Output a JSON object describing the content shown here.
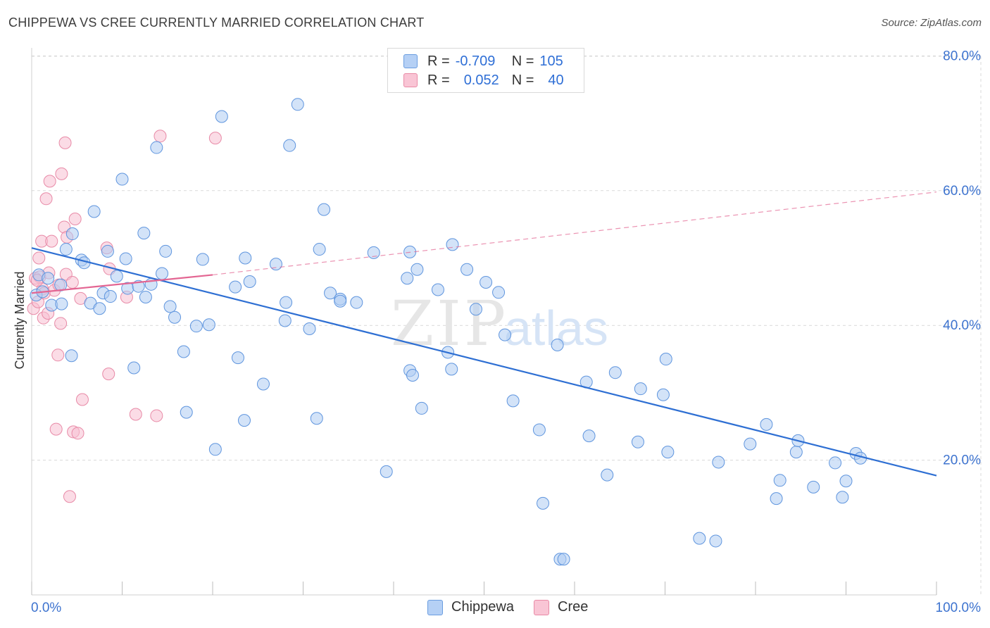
{
  "title": "CHIPPEWA VS CREE CURRENTLY MARRIED CORRELATION CHART",
  "source": "Source: ZipAtlas.com",
  "watermark_left": "ZIP",
  "watermark_right": "atlas",
  "legend": {
    "r_label": "R =",
    "n_label": "N =",
    "rows": [
      {
        "name": "Chippewa",
        "r": "-0.709",
        "n": "105",
        "fill": "#b5d0f5",
        "stroke": "#6a9de0"
      },
      {
        "name": "Cree",
        "r": "0.052",
        "n": "40",
        "fill": "#f9c5d5",
        "stroke": "#e98aa6"
      }
    ]
  },
  "colors": {
    "chippewa_fill": "#aeccf3",
    "chippewa_stroke": "#5f95de",
    "chippewa_line": "#2e6fd3",
    "cree_fill": "#f8c0d1",
    "cree_stroke": "#e88aa7",
    "cree_line": "#e36592",
    "axis_label": "#3d73cf",
    "grid": "#d9d9d9"
  },
  "chart_data": {
    "type": "scatter",
    "title": "CHIPPEWA VS CREE CURRENTLY MARRIED CORRELATION CHART",
    "xlabel": "",
    "ylabel": "Currently Married",
    "xlim": [
      0,
      100
    ],
    "ylim": [
      0,
      82
    ],
    "x_tick_labels": [
      "0.0%",
      "100.0%"
    ],
    "y_ticks": [
      20,
      40,
      60,
      80
    ],
    "y_tick_labels": [
      "20.0%",
      "40.0%",
      "60.0%",
      "80.0%"
    ],
    "grid": true,
    "series": [
      {
        "name": "Chippewa",
        "trend": {
          "x0": 0,
          "y0": 51.5,
          "x1": 100,
          "y1": 17.7
        },
        "points": [
          [
            0.5,
            44.5
          ],
          [
            0.8,
            47.5
          ],
          [
            1.2,
            45
          ],
          [
            1.8,
            47
          ],
          [
            2.2,
            43
          ],
          [
            3.3,
            43.2
          ],
          [
            3.2,
            46
          ],
          [
            3.8,
            51.3
          ],
          [
            4.5,
            53.6
          ],
          [
            4.4,
            35.5
          ],
          [
            5.5,
            49.7
          ],
          [
            5.8,
            49.3
          ],
          [
            6.5,
            43.3
          ],
          [
            6.9,
            56.9
          ],
          [
            7.5,
            42.5
          ],
          [
            7.9,
            44.8
          ],
          [
            8.4,
            51
          ],
          [
            8.7,
            44.3
          ],
          [
            9.4,
            47.3
          ],
          [
            10,
            61.7
          ],
          [
            10.4,
            49.9
          ],
          [
            10.6,
            45.5
          ],
          [
            11.3,
            33.7
          ],
          [
            11.8,
            45.8
          ],
          [
            12.4,
            53.7
          ],
          [
            12.6,
            44.2
          ],
          [
            13.2,
            46.1
          ],
          [
            13.8,
            66.4
          ],
          [
            14.4,
            47.7
          ],
          [
            14.8,
            51
          ],
          [
            15.3,
            42.8
          ],
          [
            15.8,
            41.2
          ],
          [
            16.8,
            36.1
          ],
          [
            17.1,
            27.1
          ],
          [
            18.2,
            39.9
          ],
          [
            18.9,
            49.8
          ],
          [
            19.6,
            40.1
          ],
          [
            20.3,
            21.6
          ],
          [
            21,
            71
          ],
          [
            22.5,
            45.7
          ],
          [
            22.8,
            35.2
          ],
          [
            23.5,
            25.9
          ],
          [
            23.6,
            50
          ],
          [
            24.1,
            46.5
          ],
          [
            25.6,
            31.3
          ],
          [
            27,
            49.1
          ],
          [
            28.1,
            43.4
          ],
          [
            28,
            40.7
          ],
          [
            28.5,
            66.7
          ],
          [
            29.4,
            72.8
          ],
          [
            30.7,
            39.5
          ],
          [
            31.5,
            26.2
          ],
          [
            31.8,
            51.3
          ],
          [
            32.3,
            57.2
          ],
          [
            33,
            44.8
          ],
          [
            34.1,
            43.9
          ],
          [
            34.1,
            43.6
          ],
          [
            35.9,
            43.4
          ],
          [
            37.8,
            50.8
          ],
          [
            39.2,
            18.3
          ],
          [
            41.5,
            47
          ],
          [
            41.8,
            50.9
          ],
          [
            41.8,
            33.3
          ],
          [
            42.1,
            32.6
          ],
          [
            42.6,
            48.3
          ],
          [
            43.1,
            27.7
          ],
          [
            44.9,
            45.3
          ],
          [
            46,
            36
          ],
          [
            46.4,
            33.5
          ],
          [
            46.5,
            52
          ],
          [
            48.1,
            48.3
          ],
          [
            49.1,
            42.4
          ],
          [
            50.2,
            46.4
          ],
          [
            51.6,
            44.9
          ],
          [
            52.3,
            38.6
          ],
          [
            53.2,
            28.8
          ],
          [
            56.1,
            24.5
          ],
          [
            56.5,
            13.6
          ],
          [
            58.1,
            37.1
          ],
          [
            58.4,
            5.3
          ],
          [
            58.8,
            5.3
          ],
          [
            61.3,
            31.6
          ],
          [
            61.6,
            23.6
          ],
          [
            63.6,
            17.8
          ],
          [
            64.5,
            33
          ],
          [
            67,
            22.7
          ],
          [
            67.3,
            30.6
          ],
          [
            69.8,
            29.7
          ],
          [
            70.1,
            35
          ],
          [
            70.3,
            21.2
          ],
          [
            73.8,
            8.4
          ],
          [
            75.6,
            8
          ],
          [
            75.9,
            19.7
          ],
          [
            79.4,
            22.4
          ],
          [
            81.2,
            25.3
          ],
          [
            82.3,
            14.3
          ],
          [
            82.7,
            17
          ],
          [
            84.5,
            21.2
          ],
          [
            84.7,
            22.9
          ],
          [
            86.4,
            16
          ],
          [
            88.8,
            19.6
          ],
          [
            89.6,
            14.5
          ],
          [
            90,
            16.9
          ],
          [
            91.1,
            21
          ],
          [
            91.6,
            20.3
          ]
        ]
      },
      {
        "name": "Cree",
        "trend": {
          "x0": 0,
          "y0": 44.8,
          "x1": 20,
          "y1": 47.5,
          "dashed_x1": 100,
          "dashed_y1": 59.8
        },
        "points": [
          [
            0.2,
            42.5
          ],
          [
            0.4,
            47
          ],
          [
            0.7,
            43.5
          ],
          [
            0.8,
            50
          ],
          [
            0.9,
            47.2
          ],
          [
            1.1,
            52.5
          ],
          [
            1.2,
            45.4
          ],
          [
            1.3,
            41.1
          ],
          [
            1.4,
            44.8
          ],
          [
            1.6,
            58.8
          ],
          [
            1.8,
            41.8
          ],
          [
            1.9,
            47.8
          ],
          [
            2,
            61.4
          ],
          [
            2.2,
            52.5
          ],
          [
            2.5,
            45.2
          ],
          [
            2.7,
            24.6
          ],
          [
            2.9,
            35.6
          ],
          [
            3,
            46
          ],
          [
            3.2,
            40.3
          ],
          [
            3.3,
            62.5
          ],
          [
            3.6,
            54.6
          ],
          [
            3.7,
            67.1
          ],
          [
            3.8,
            47.6
          ],
          [
            3.9,
            53.1
          ],
          [
            4.2,
            14.6
          ],
          [
            4.5,
            46.4
          ],
          [
            4.6,
            24.2
          ],
          [
            4.8,
            55.8
          ],
          [
            5.1,
            24
          ],
          [
            5.4,
            44
          ],
          [
            5.6,
            29
          ],
          [
            8.3,
            51.5
          ],
          [
            8.5,
            32.8
          ],
          [
            8.6,
            48.4
          ],
          [
            10.5,
            44.2
          ],
          [
            11.5,
            26.8
          ],
          [
            13.8,
            26.6
          ],
          [
            14.2,
            68.1
          ],
          [
            20.3,
            67.8
          ],
          [
            0.6,
            46.7
          ]
        ]
      }
    ]
  }
}
